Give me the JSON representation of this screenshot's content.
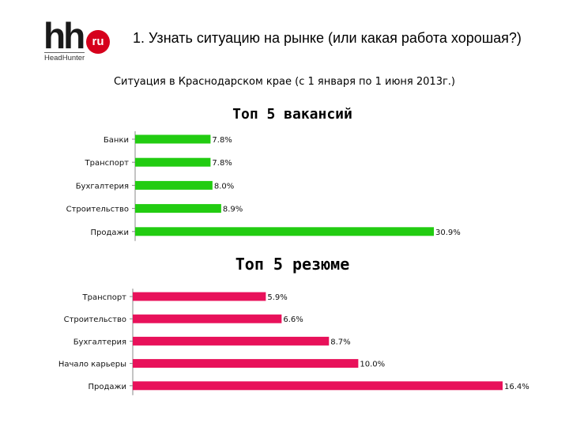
{
  "header": {
    "logo_text": "hh",
    "logo_badge": "ru",
    "logo_caption": "HeadHunter",
    "title": "1. Узнать ситуацию на рынке (или какая работа хорошая?)",
    "subtitle": "Ситуация в Краснодарском крае (с 1 января по 1 июня 2013г.)"
  },
  "colors": {
    "vacancies": "#22cc11",
    "resumes": "#e8115a"
  },
  "chart_data": [
    {
      "type": "bar",
      "orientation": "horizontal",
      "title": "Топ 5 вакансий",
      "categories": [
        "Банки",
        "Транспорт",
        "Бухгалтерия",
        "Строительство",
        "Продажи"
      ],
      "values": [
        7.8,
        7.8,
        8.0,
        8.9,
        30.9
      ],
      "value_labels": [
        "7.8%",
        "7.8%",
        "8.0%",
        "8.9%",
        "30.9%"
      ],
      "unit": "%",
      "xlim": [
        0,
        30.9
      ],
      "grid": false,
      "color": "#22cc11"
    },
    {
      "type": "bar",
      "orientation": "horizontal",
      "title": "Топ 5 резюме",
      "categories": [
        "Транспорт",
        "Строительство",
        "Бухгалтерия",
        "Начало карьеры",
        "Продажи"
      ],
      "values": [
        5.9,
        6.6,
        8.7,
        10.0,
        16.4
      ],
      "value_labels": [
        "5.9%",
        "6.6%",
        "8.7%",
        "10.0%",
        "16.4%"
      ],
      "unit": "%",
      "xlim": [
        0,
        16.4
      ],
      "grid": false,
      "color": "#e8115a"
    }
  ]
}
